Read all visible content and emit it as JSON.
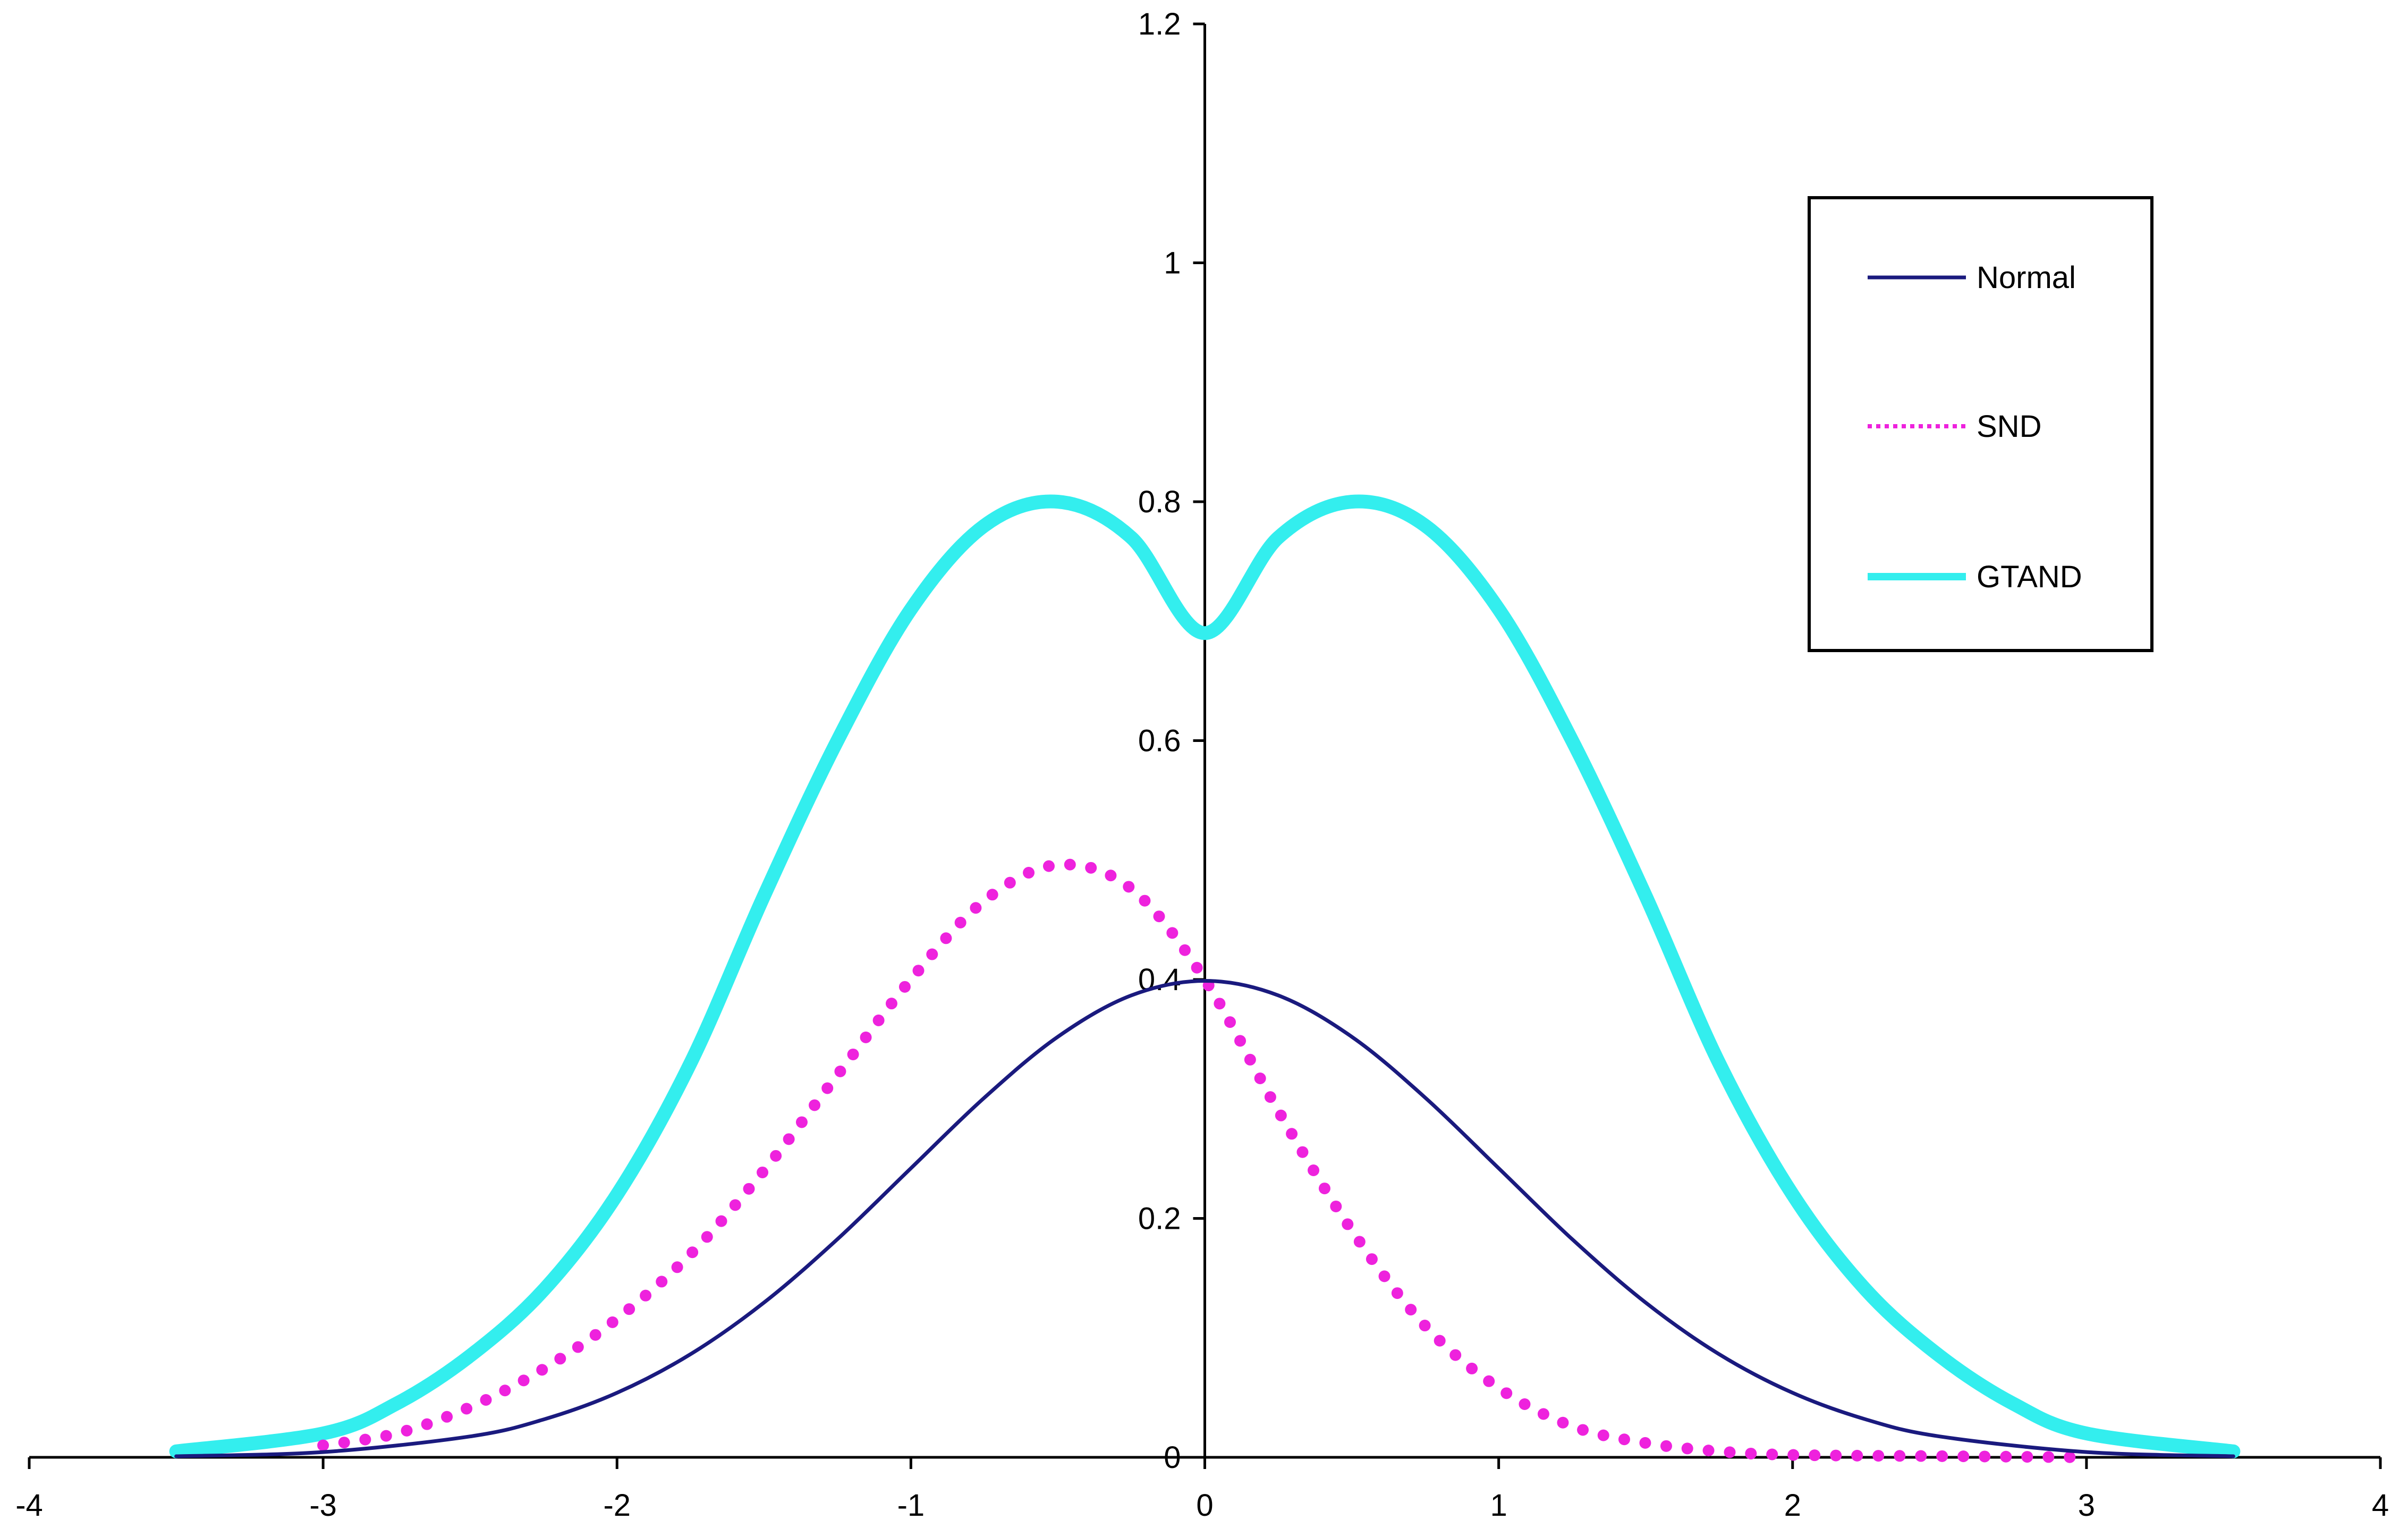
{
  "chart_data": {
    "type": "line",
    "title": "",
    "xlabel": "",
    "ylabel": "",
    "xlim": [
      -4,
      4
    ],
    "ylim": [
      0,
      1.2
    ],
    "x_ticks": [
      -4,
      -3,
      -2,
      -1,
      0,
      1,
      2,
      3,
      4
    ],
    "y_ticks": [
      0,
      0.2,
      0.4,
      0.6,
      0.8,
      1,
      1.2
    ],
    "x_tick_labels": [
      "-4",
      "-3",
      "-2",
      "-1",
      "0",
      "1",
      "2",
      "3",
      "4"
    ],
    "y_tick_labels": [
      "0",
      "0.2",
      "0.4",
      "0.6",
      "0.8",
      "1",
      "1.2"
    ],
    "grid": false,
    "legend_position": "top-right",
    "series": [
      {
        "name": "Normal",
        "color": "#1a1a7e",
        "style": "solid",
        "x": [
          -3.5,
          -3.0,
          -2.5,
          -2.25,
          -2.0,
          -1.75,
          -1.5,
          -1.25,
          -1.0,
          -0.75,
          -0.5,
          -0.25,
          0.0,
          0.25,
          0.5,
          0.75,
          1.0,
          1.25,
          1.5,
          1.75,
          2.0,
          2.25,
          2.5,
          3.0,
          3.5
        ],
        "y": [
          0.0009,
          0.0044,
          0.0175,
          0.0317,
          0.054,
          0.0863,
          0.1295,
          0.1826,
          0.242,
          0.3011,
          0.3521,
          0.3867,
          0.3989,
          0.3867,
          0.3521,
          0.3011,
          0.242,
          0.1826,
          0.1295,
          0.0863,
          0.054,
          0.0317,
          0.0175,
          0.0044,
          0.0009
        ]
      },
      {
        "name": "SND",
        "color": "#ee22dd",
        "style": "dotted",
        "x": [
          -3.0,
          -2.75,
          -2.5,
          -2.25,
          -2.0,
          -1.75,
          -1.5,
          -1.25,
          -1.0,
          -0.75,
          -0.5,
          -0.25,
          0.0,
          0.25,
          0.5,
          0.75,
          1.0,
          1.25,
          1.5,
          1.75,
          2.0,
          2.5,
          3.0
        ],
        "y": [
          0.01,
          0.02,
          0.042,
          0.074,
          0.116,
          0.17,
          0.24,
          0.32,
          0.4,
          0.466,
          0.496,
          0.476,
          0.4,
          0.29,
          0.19,
          0.11,
          0.058,
          0.026,
          0.012,
          0.005,
          0.002,
          0.001,
          0.0
        ]
      },
      {
        "name": "GTAND",
        "color": "#33eeee",
        "style": "solid",
        "x": [
          -3.5,
          -3.0,
          -2.75,
          -2.5,
          -2.25,
          -2.0,
          -1.75,
          -1.5,
          -1.25,
          -1.0,
          -0.75,
          -0.5,
          -0.25,
          0.0,
          0.25,
          0.5,
          0.75,
          1.0,
          1.25,
          1.5,
          1.75,
          2.0,
          2.25,
          2.5,
          2.75,
          3.0,
          3.5
        ],
        "y": [
          0.005,
          0.02,
          0.045,
          0.085,
          0.14,
          0.22,
          0.33,
          0.47,
          0.6,
          0.71,
          0.78,
          0.8,
          0.77,
          0.69,
          0.77,
          0.8,
          0.78,
          0.71,
          0.6,
          0.47,
          0.33,
          0.22,
          0.14,
          0.085,
          0.045,
          0.02,
          0.005
        ]
      }
    ]
  }
}
